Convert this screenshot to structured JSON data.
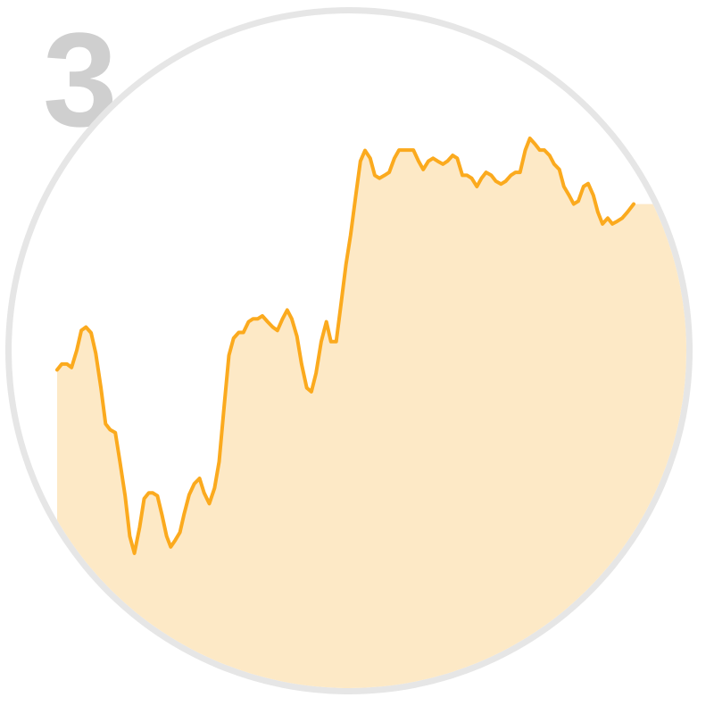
{
  "badge": {
    "step_number": "3"
  },
  "colors": {
    "line": "#FBAA1E",
    "fill": "#FDE9C6",
    "circle_background": "#ffffff",
    "circle_shadow": "#e6e6e6",
    "step_number": "#cfcfcf"
  },
  "chart_data": {
    "type": "area",
    "title": "",
    "xlabel": "",
    "ylabel": "",
    "grid": false,
    "legend": "none",
    "xlim": [
      0,
      100
    ],
    "ylim": [
      0,
      100
    ],
    "series": [
      {
        "values": [
          [
            0,
            52.4
          ],
          [
            0.8,
            53.6
          ],
          [
            1.7,
            53.6
          ],
          [
            2.5,
            52.9
          ],
          [
            3.4,
            56.4
          ],
          [
            4.2,
            60.5
          ],
          [
            5.0,
            61.2
          ],
          [
            5.9,
            60.0
          ],
          [
            6.7,
            55.8
          ],
          [
            7.6,
            48.7
          ],
          [
            8.4,
            41.3
          ],
          [
            9.2,
            40.1
          ],
          [
            10.1,
            39.5
          ],
          [
            10.9,
            33.5
          ],
          [
            11.8,
            26.5
          ],
          [
            12.6,
            18.2
          ],
          [
            13.4,
            14.7
          ],
          [
            14.3,
            20.0
          ],
          [
            15.1,
            25.9
          ],
          [
            15.9,
            27.1
          ],
          [
            16.6,
            27.1
          ],
          [
            17.4,
            26.5
          ],
          [
            18.2,
            22.5
          ],
          [
            19.0,
            18.2
          ],
          [
            19.7,
            16.0
          ],
          [
            20.5,
            17.4
          ],
          [
            21.3,
            19.0
          ],
          [
            22.0,
            22.6
          ],
          [
            22.9,
            26.7
          ],
          [
            23.8,
            29.0
          ],
          [
            24.7,
            30.1
          ],
          [
            25.5,
            27.1
          ],
          [
            26.4,
            24.9
          ],
          [
            27.3,
            28.1
          ],
          [
            28.1,
            33.5
          ],
          [
            28.9,
            44.0
          ],
          [
            29.8,
            55.4
          ],
          [
            30.6,
            58.9
          ],
          [
            31.5,
            60.1
          ],
          [
            32.3,
            60.1
          ],
          [
            33.2,
            62.3
          ],
          [
            34.0,
            62.9
          ],
          [
            34.8,
            62.9
          ],
          [
            35.6,
            63.5
          ],
          [
            36.5,
            62.3
          ],
          [
            37.4,
            61.2
          ],
          [
            38.2,
            60.5
          ],
          [
            39.1,
            62.9
          ],
          [
            39.9,
            64.7
          ],
          [
            40.7,
            62.9
          ],
          [
            41.6,
            59.3
          ],
          [
            42.4,
            53.6
          ],
          [
            43.3,
            48.7
          ],
          [
            44.1,
            47.9
          ],
          [
            44.9,
            51.7
          ],
          [
            45.8,
            58.2
          ],
          [
            46.7,
            62.3
          ],
          [
            47.5,
            58.2
          ],
          [
            48.4,
            58.2
          ],
          [
            49.2,
            65.5
          ],
          [
            50.1,
            74.0
          ],
          [
            50.9,
            80.1
          ],
          [
            51.8,
            88.2
          ],
          [
            52.6,
            95.3
          ],
          [
            53.4,
            97.5
          ],
          [
            54.3,
            95.9
          ],
          [
            55.1,
            92.4
          ],
          [
            55.9,
            91.8
          ],
          [
            56.8,
            92.4
          ],
          [
            57.6,
            93.0
          ],
          [
            58.5,
            95.9
          ],
          [
            59.3,
            97.6
          ],
          [
            60.2,
            97.6
          ],
          [
            61.0,
            97.6
          ],
          [
            61.8,
            97.6
          ],
          [
            62.7,
            95.3
          ],
          [
            63.5,
            93.6
          ],
          [
            64.4,
            95.3
          ],
          [
            65.2,
            95.9
          ],
          [
            66.0,
            95.3
          ],
          [
            66.9,
            94.7
          ],
          [
            67.7,
            95.3
          ],
          [
            68.6,
            96.5
          ],
          [
            69.4,
            95.9
          ],
          [
            70.3,
            92.4
          ],
          [
            71.1,
            92.4
          ],
          [
            71.9,
            91.8
          ],
          [
            72.8,
            90.1
          ],
          [
            73.6,
            91.8
          ],
          [
            74.4,
            93.0
          ],
          [
            75.3,
            92.4
          ],
          [
            76.1,
            91.2
          ],
          [
            77.0,
            90.6
          ],
          [
            77.8,
            91.2
          ],
          [
            78.7,
            92.4
          ],
          [
            79.5,
            93.0
          ],
          [
            80.3,
            93.0
          ],
          [
            81.2,
            97.6
          ],
          [
            82.0,
            100.0
          ],
          [
            82.9,
            98.8
          ],
          [
            83.7,
            97.6
          ],
          [
            84.5,
            97.6
          ],
          [
            85.4,
            96.5
          ],
          [
            86.2,
            94.7
          ],
          [
            87.1,
            93.6
          ],
          [
            87.9,
            90.1
          ],
          [
            88.8,
            88.3
          ],
          [
            89.6,
            86.5
          ],
          [
            90.4,
            87.1
          ],
          [
            91.3,
            90.1
          ],
          [
            92.1,
            90.7
          ],
          [
            93.0,
            88.3
          ],
          [
            93.8,
            84.8
          ],
          [
            94.6,
            82.4
          ],
          [
            95.5,
            83.6
          ],
          [
            96.3,
            82.4
          ],
          [
            97.2,
            83.0
          ],
          [
            98.0,
            83.6
          ],
          [
            98.9,
            84.8
          ],
          [
            100,
            86.5
          ]
        ]
      }
    ]
  }
}
